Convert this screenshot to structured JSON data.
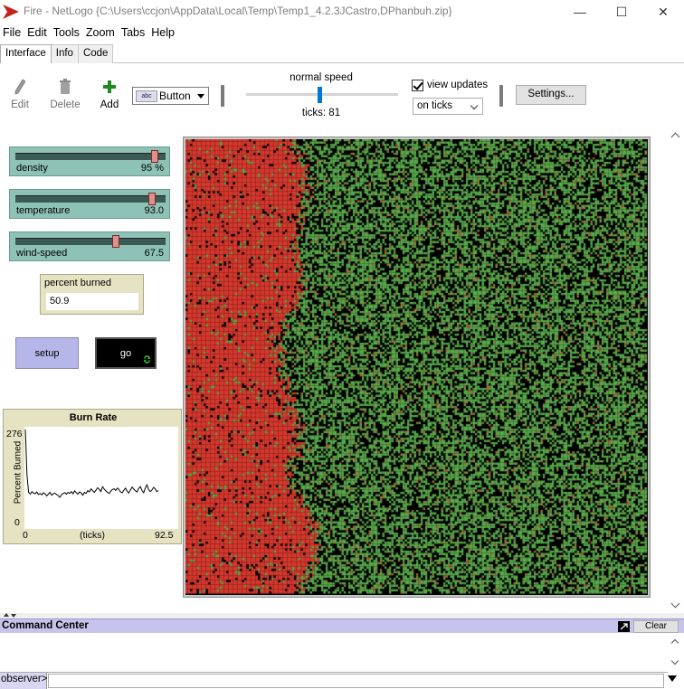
{
  "window": {
    "title": "Fire - NetLogo {C:\\Users\\ccjon\\AppData\\Local\\Temp\\Temp1_4.2.3JCastro,DPhanbuh.zip}",
    "minimize_glyph": "—",
    "maximize_glyph": "☐",
    "close_glyph": "✕"
  },
  "menu": [
    "File",
    "Edit",
    "Tools",
    "Zoom",
    "Tabs",
    "Help"
  ],
  "tabs": [
    {
      "label": "Interface",
      "active": true
    },
    {
      "label": "Info",
      "active": false
    },
    {
      "label": "Code",
      "active": false
    }
  ],
  "toolbar": {
    "edit_label": "Edit",
    "delete_label": "Delete",
    "add_label": "Add",
    "widget_type": "Button",
    "widget_icon_text": "abc",
    "speed_label": "normal speed",
    "speed_fraction": 0.5,
    "ticks_label": "ticks: 81",
    "view_updates_label": "view updates",
    "view_updates_checked": true,
    "update_mode": "on ticks",
    "settings_label": "Settings..."
  },
  "sliders": [
    {
      "name": "density",
      "value_text": "95 %",
      "fraction": 0.95
    },
    {
      "name": "temperature",
      "value_text": "93.0",
      "fraction": 0.93
    },
    {
      "name": "wind-speed",
      "value_text": "67.5",
      "fraction": 0.675
    }
  ],
  "monitor": {
    "label": "percent burned",
    "value": "50.9"
  },
  "buttons": {
    "setup": "setup",
    "go": "go"
  },
  "plot": {
    "title": "Burn Rate",
    "ylabel": "Percent Burned",
    "xlabel": "(ticks)",
    "xmin_label": "0",
    "xmax_label": "92.5",
    "ymin_label": "0",
    "ymax_label": "276"
  },
  "chart_data": {
    "type": "line",
    "title": "Burn Rate",
    "xlabel": "(ticks)",
    "ylabel": "Percent Burned",
    "xlim": [
      0,
      92.5
    ],
    "ylim": [
      0,
      276
    ],
    "series": [
      {
        "name": "",
        "x": [
          0,
          1,
          2,
          3,
          4,
          5,
          6,
          7,
          8,
          9,
          10,
          11,
          12,
          13,
          14,
          15,
          16,
          17,
          18,
          19,
          20,
          21,
          22,
          23,
          24,
          25,
          26,
          27,
          28,
          29,
          30,
          31,
          32,
          33,
          34,
          35,
          36,
          37,
          38,
          39,
          40,
          41,
          42,
          43,
          44,
          45,
          46,
          47,
          48,
          49,
          50,
          51,
          52,
          53,
          54,
          55,
          56,
          57,
          58,
          59,
          60,
          61,
          62,
          63,
          64,
          65,
          66,
          67,
          68,
          69,
          70,
          71,
          72,
          73,
          74,
          75,
          76,
          77,
          78,
          79,
          80,
          81
        ],
        "y": [
          276,
          150,
          100,
          95,
          102,
          98,
          96,
          101,
          94,
          97,
          93,
          99,
          96,
          90,
          95,
          100,
          92,
          96,
          98,
          94,
          91,
          86,
          93,
          97,
          99,
          95,
          100,
          97,
          102,
          96,
          104,
          99,
          95,
          101,
          98,
          92,
          100,
          97,
          105,
          101,
          110,
          104,
          100,
          106,
          113,
          108,
          102,
          116,
          109,
          104,
          100,
          97,
          103,
          108,
          110,
          105,
          112,
          108,
          101,
          99,
          106,
          112,
          103,
          98,
          107,
          115,
          109,
          104,
          101,
          111,
          116,
          105,
          99,
          112,
          121,
          108,
          102,
          106,
          114,
          110,
          102,
          105
        ]
      }
    ]
  },
  "view": {
    "burned_fraction": 0.509,
    "density": 0.95,
    "colors": {
      "tree": "#59a84a",
      "fire": "#d7382d",
      "ember": "#a06a3c",
      "ground": "#000000",
      "frame": "#c8c8c8"
    }
  },
  "command_center": {
    "title": "Command Center",
    "clear_label": "Clear",
    "observer_label": "observer>"
  }
}
